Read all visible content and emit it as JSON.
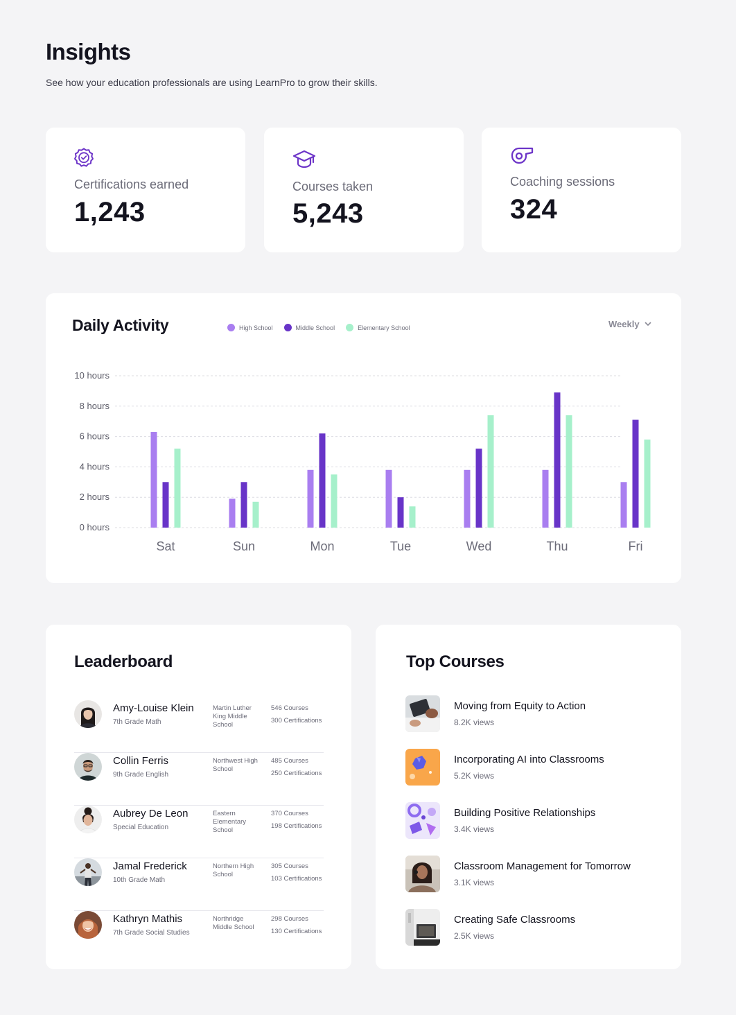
{
  "header": {
    "title": "Insights",
    "subtitle": "See how your education professionals are using LearnPro to grow their skills."
  },
  "colors": {
    "accent": "#6d35c8",
    "high_school": "#a97ef0",
    "middle_school": "#6834c8",
    "elementary_school": "#a6f0cb"
  },
  "stats": [
    {
      "icon": "badge-check-icon",
      "label": "Certifications earned",
      "value": "1,243"
    },
    {
      "icon": "graduation-cap-icon",
      "label": "Courses taken",
      "value": "5,243"
    },
    {
      "icon": "whistle-icon",
      "label": "Coaching sessions",
      "value": "324"
    }
  ],
  "activity": {
    "title": "Daily Activity",
    "period": "Weekly",
    "legend": [
      "High School",
      "Middle School",
      "Elementary School"
    ]
  },
  "chart_data": {
    "type": "bar",
    "title": "Daily Activity",
    "xlabel": "",
    "ylabel": "",
    "ylim": [
      0,
      10
    ],
    "y_ticks": [
      "0 hours",
      "2 hours",
      "4 hours",
      "6 hours",
      "8 hours",
      "10 hours"
    ],
    "y_tick_values": [
      0,
      2,
      4,
      6,
      8,
      10
    ],
    "categories": [
      "Sat",
      "Sun",
      "Mon",
      "Tue",
      "Wed",
      "Thu",
      "Fri"
    ],
    "series": [
      {
        "name": "High School",
        "values": [
          6.3,
          1.9,
          3.8,
          3.8,
          3.8,
          3.8,
          3.0
        ]
      },
      {
        "name": "Middle School",
        "values": [
          3.0,
          3.0,
          6.2,
          2.0,
          5.2,
          8.9,
          7.1
        ]
      },
      {
        "name": "Elementary School",
        "values": [
          5.2,
          1.7,
          3.5,
          1.4,
          7.4,
          7.4,
          5.8
        ]
      }
    ],
    "grid": true,
    "legend_position": "top"
  },
  "leaderboard": {
    "title": "Leaderboard",
    "rows": [
      {
        "name": "Amy-Louise Klein",
        "role": "7th Grade Math",
        "school": "Martin Luther King Middle School",
        "courses": "546 Courses",
        "certifications": "300 Certifications"
      },
      {
        "name": "Collin Ferris",
        "role": "9th Grade English",
        "school": "Northwest High School",
        "courses": "485 Courses",
        "certifications": "250 Certifications"
      },
      {
        "name": "Aubrey De Leon",
        "role": "Special Education",
        "school": "Eastern Elementary School",
        "courses": "370 Courses",
        "certifications": "198 Certifications"
      },
      {
        "name": "Jamal Frederick",
        "role": "10th Grade Math",
        "school": "Northern High School",
        "courses": "305 Courses",
        "certifications": "103 Certifications"
      },
      {
        "name": "Kathryn Mathis",
        "role": "7th Grade Social Studies",
        "school": "Northridge Middle School",
        "courses": "298 Courses",
        "certifications": "130 Certifications"
      }
    ]
  },
  "top_courses": {
    "title": "Top Courses",
    "items": [
      {
        "title": "Moving from Equity to Action",
        "views": "8.2K views"
      },
      {
        "title": "Incorporating AI into Classrooms",
        "views": "5.2K views"
      },
      {
        "title": "Building Positive Relationships",
        "views": "3.4K views"
      },
      {
        "title": "Classroom Management for Tomorrow",
        "views": "3.1K views"
      },
      {
        "title": "Creating Safe Classrooms",
        "views": "2.5K views"
      }
    ]
  }
}
